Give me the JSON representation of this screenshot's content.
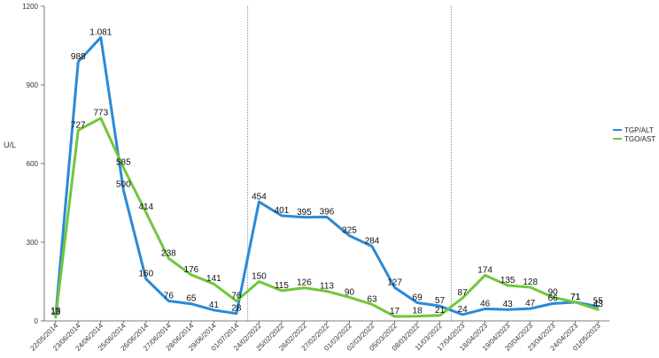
{
  "chart_data": {
    "type": "line",
    "title": "",
    "xlabel": "",
    "ylabel": "U/L",
    "ylim": [
      0,
      1200
    ],
    "yticks": [
      "0",
      "300",
      "600",
      "900",
      "1200"
    ],
    "grid": false,
    "legend_position": "right",
    "categories": [
      "22/05/2014",
      "23/06/2014",
      "24/06/2014",
      "25/06/2014",
      "26/06/2014",
      "27/06/2014",
      "28/06/2014",
      "29/06/2014",
      "01/07/2014",
      "24/02/2022",
      "25/02/2022",
      "26/02/2022",
      "27/02/2022",
      "01/03/2022",
      "02/03/2022",
      "05/03/2022",
      "08/03/2022",
      "11/03/2022",
      "17/04/2023",
      "18/04/2023",
      "19/04/2023",
      "20/04/2023",
      "23/04/2023",
      "24/04/2023",
      "01/05/2023"
    ],
    "separators_after": [
      "01/07/2014",
      "11/03/2022"
    ],
    "series": [
      {
        "name": "TGP/ALT",
        "color": "#2a8ad6",
        "values": [
          18,
          988,
          1081,
          500,
          160,
          76,
          65,
          41,
          28,
          454,
          401,
          395,
          396,
          325,
          284,
          127,
          69,
          57,
          24,
          46,
          43,
          47,
          66,
          71,
          55
        ],
        "labels": [
          "18",
          "988",
          "1.081",
          "500",
          "160",
          "76",
          "65",
          "41",
          "28",
          "454",
          "401",
          "395",
          "396",
          "325",
          "284",
          "127",
          "69",
          "57",
          "24",
          "46",
          "43",
          "47",
          "66",
          "71",
          "55"
        ]
      },
      {
        "name": "TGO/AST",
        "color": "#70c73c",
        "values": [
          13,
          727,
          773,
          585,
          414,
          238,
          176,
          141,
          76,
          150,
          115,
          126,
          113,
          90,
          63,
          17,
          18,
          21,
          87,
          174,
          135,
          128,
          90,
          71,
          43
        ],
        "labels": [
          "13",
          "727",
          "773",
          "585",
          "414",
          "238",
          "176",
          "141",
          "76",
          "150",
          "115",
          "126",
          "113",
          "90",
          "63",
          "17",
          "18",
          "21",
          "87",
          "174",
          "135",
          "128",
          "90",
          "71",
          "43"
        ]
      }
    ]
  }
}
